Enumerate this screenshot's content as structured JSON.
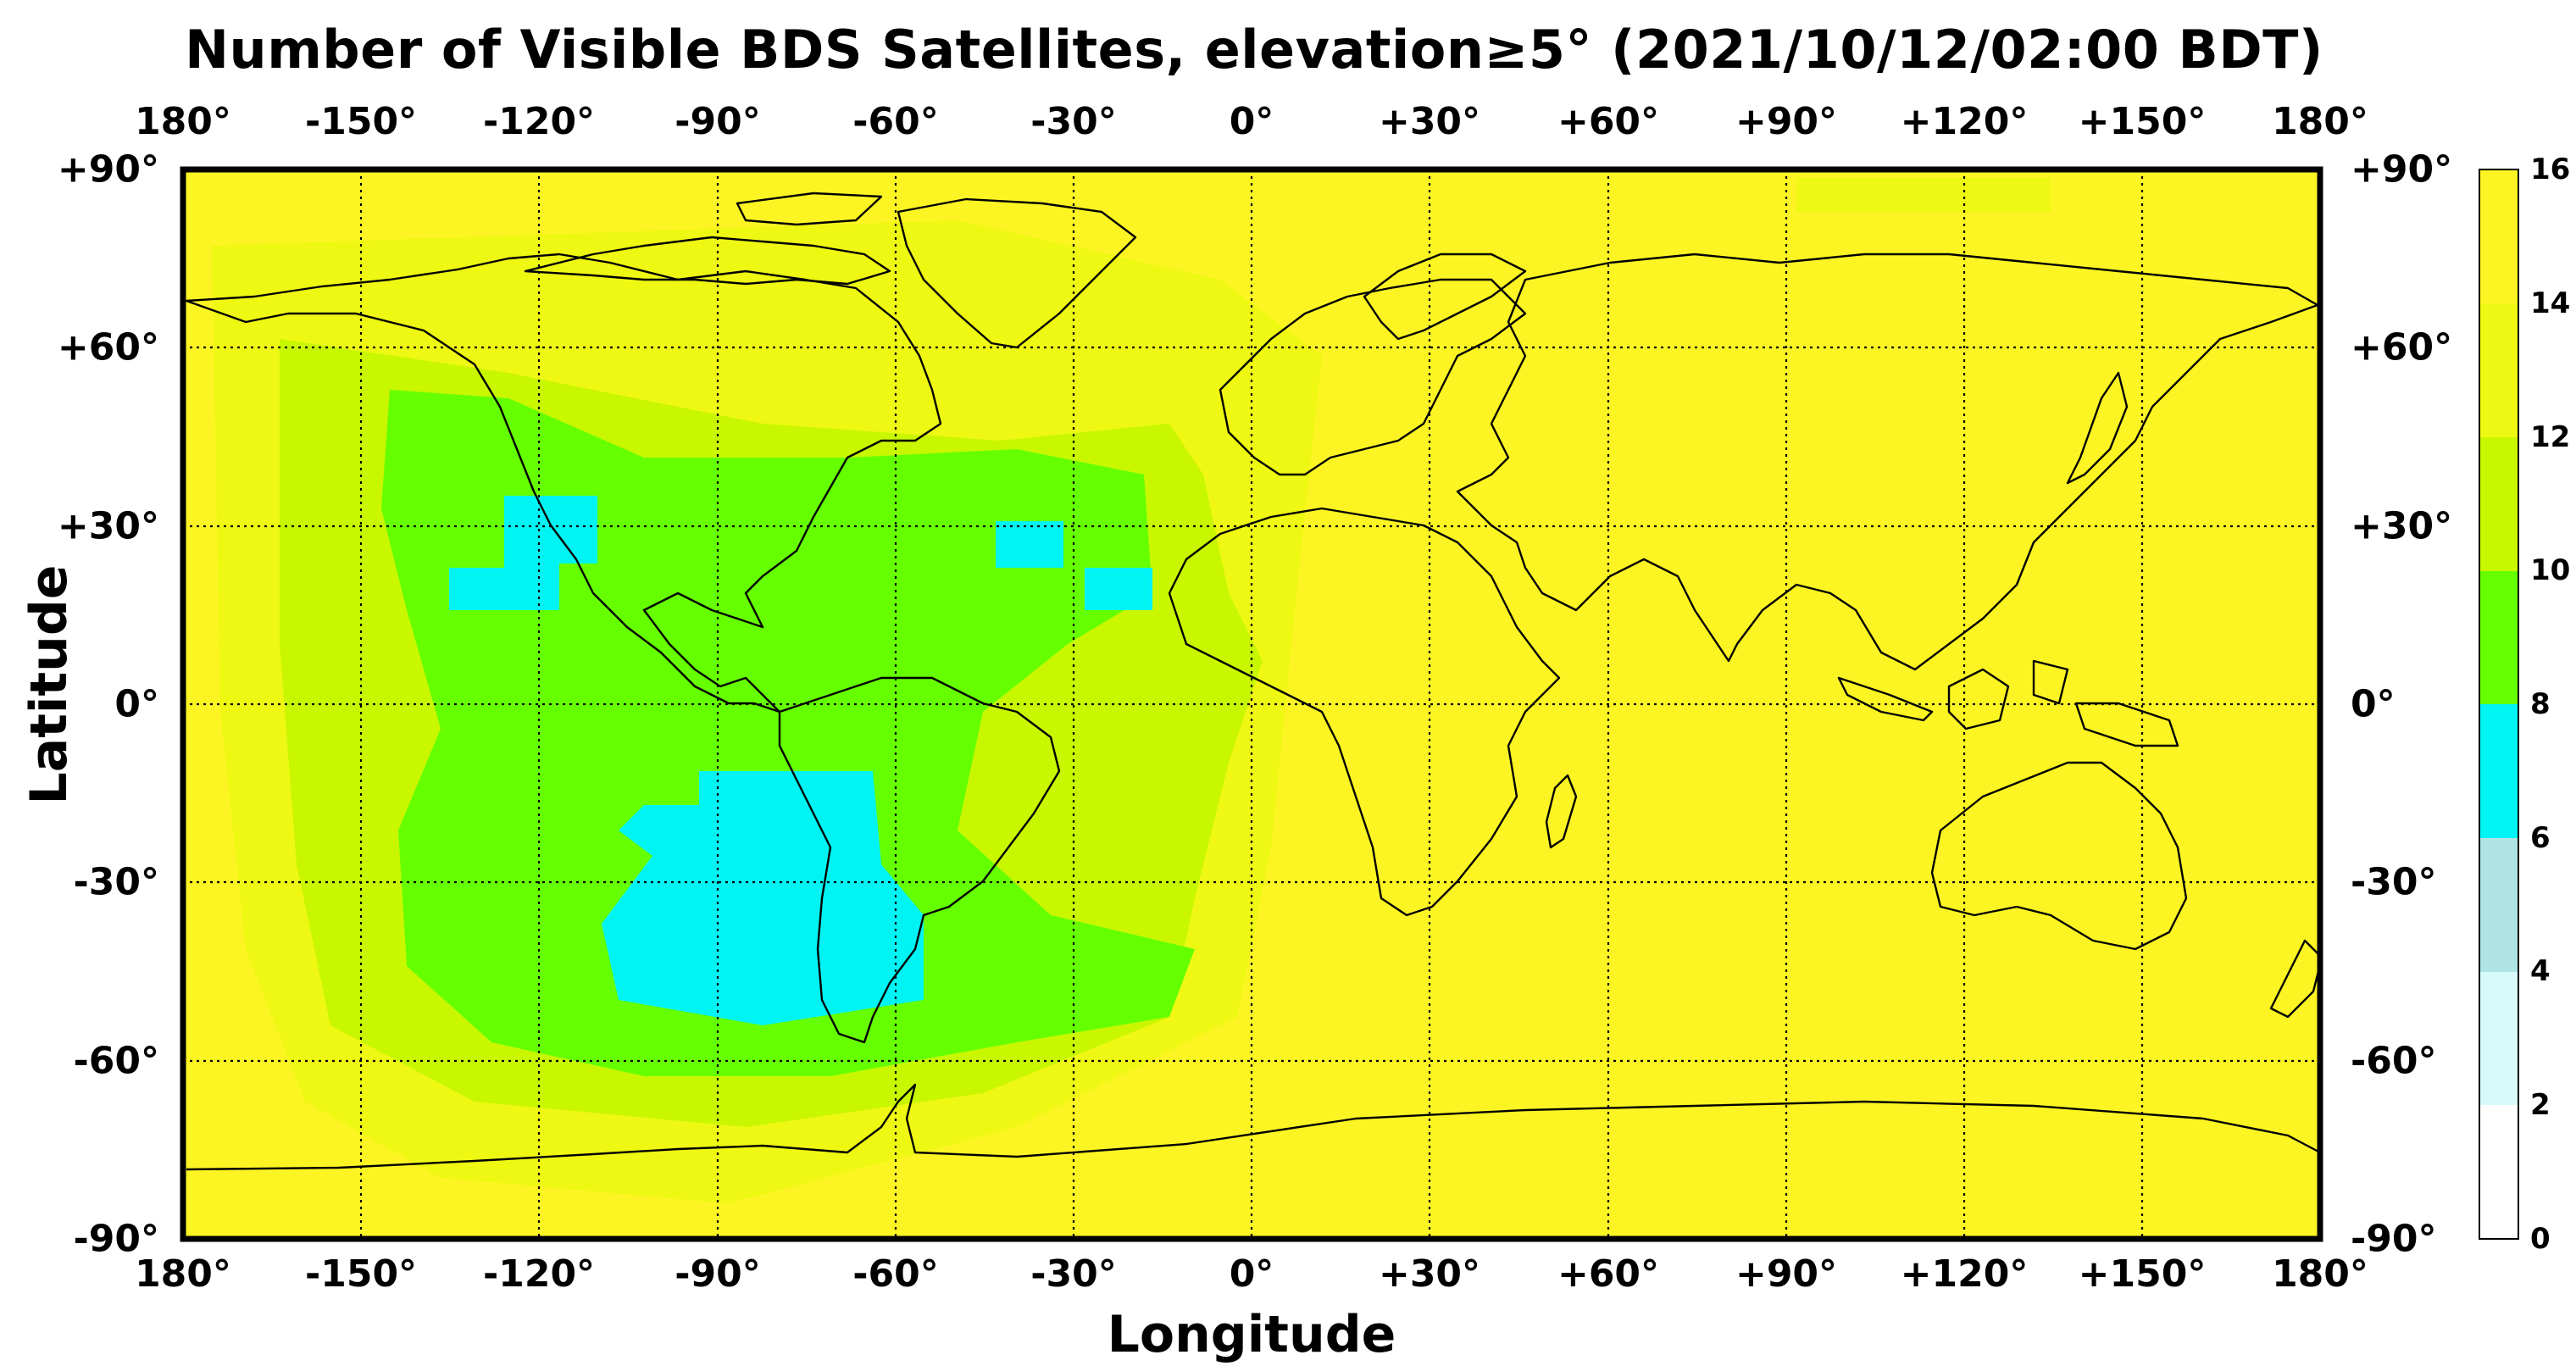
{
  "title": "Number of Visible BDS Satellites, elevation≥5° (2021/10/12/02:00 BDT)",
  "xlabel": "Longitude",
  "ylabel": "Latitude",
  "lon_ticks": [
    "180°",
    "-150°",
    "-120°",
    "-90°",
    "-60°",
    "-30°",
    "0°",
    "+30°",
    "+60°",
    "+90°",
    "+120°",
    "+150°",
    "180°"
  ],
  "lat_ticks": [
    "+90°",
    "+60°",
    "+30°",
    "0°",
    "-30°",
    "-60°",
    "-90°"
  ],
  "colorbar": {
    "ticks": [
      "16",
      "14",
      "12",
      "10",
      "8",
      "6",
      "4",
      "2",
      "0"
    ],
    "bands": [
      {
        "range": "0-2",
        "color": "#ffffff"
      },
      {
        "range": "2-4",
        "color": "#d8fafa"
      },
      {
        "range": "4-6",
        "color": "#aee4e4"
      },
      {
        "range": "6-8",
        "color": "#00f4f4"
      },
      {
        "range": "8-10",
        "color": "#66ff00"
      },
      {
        "range": "10-12",
        "color": "#c8f700"
      },
      {
        "range": "12-14",
        "color": "#eef812"
      },
      {
        "range": "14-16",
        "color": "#fdf523"
      }
    ]
  },
  "colors": {
    "level_16": "#fdf523",
    "level_13": "#eef812",
    "level_11": "#c8f700",
    "level_9": "#66ff00",
    "level_7": "#00f4f4",
    "coastline": "#000000",
    "grid": "#000000"
  }
}
